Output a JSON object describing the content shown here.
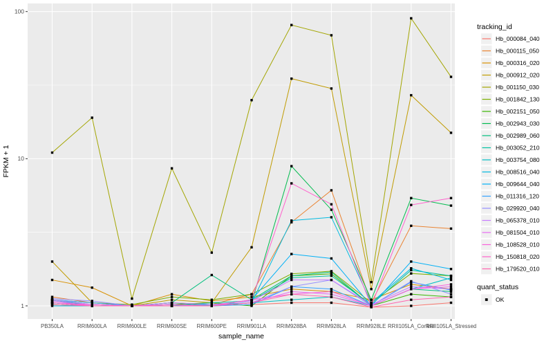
{
  "chart_data": {
    "type": "line",
    "title": "",
    "xlabel": "sample_name",
    "ylabel": "FPKM + 1",
    "y_scale": "log10",
    "ylim": [
      0.81,
      113
    ],
    "y_major_ticks": [
      1,
      10,
      100
    ],
    "y_minor_gridlines": [
      3.162,
      31.62
    ],
    "grid": true,
    "legend_position": "right",
    "color_legend_title": "tracking_id",
    "shape_legend_title": "quant_status",
    "shape_legend_entries": [
      {
        "label": "OK",
        "shape": "square",
        "color": "#000000"
      }
    ],
    "categories": [
      "PB350LA",
      "RRIM600LA",
      "RRIM600LE",
      "RRIM600SE",
      "RRIM600PE",
      "RRIM901LA",
      "RRIM928BA",
      "RRIM928LA",
      "RRIM928LE",
      "RRII105LA_Control",
      "RRII105LA_Stressed"
    ],
    "series": [
      {
        "name": "Hb_000084_040",
        "color": "#F8766D",
        "values": [
          1.05,
          1.0,
          1.0,
          1.0,
          1.0,
          1.02,
          1.05,
          1.05,
          0.98,
          1.0,
          1.05
        ]
      },
      {
        "name": "Hb_000115_050",
        "color": "#EA8331",
        "values": [
          1.15,
          1.05,
          1.0,
          1.05,
          1.02,
          1.2,
          3.7,
          6.1,
          1.05,
          3.5,
          3.35
        ]
      },
      {
        "name": "Hb_000316_020",
        "color": "#D89000",
        "values": [
          1.5,
          1.33,
          1.0,
          1.2,
          1.08,
          1.15,
          1.3,
          1.25,
          1.1,
          1.4,
          1.3
        ]
      },
      {
        "name": "Hb_000912_020",
        "color": "#C09B00",
        "values": [
          2.0,
          1.05,
          1.0,
          1.1,
          1.05,
          2.5,
          35,
          30,
          1.3,
          27,
          15
        ]
      },
      {
        "name": "Hb_001150_030",
        "color": "#A3A500",
        "values": [
          11,
          19,
          1.12,
          8.6,
          2.3,
          25,
          81,
          69,
          1.45,
          90,
          36
        ]
      },
      {
        "name": "Hb_001842_130",
        "color": "#7CAE00",
        "values": [
          1.1,
          1.05,
          1.02,
          1.15,
          1.1,
          1.2,
          1.65,
          1.72,
          1.05,
          1.66,
          1.6
        ]
      },
      {
        "name": "Hb_002151_050",
        "color": "#39B600",
        "values": [
          1.02,
          1.0,
          1.0,
          1.02,
          1.05,
          1.0,
          1.6,
          1.65,
          1.0,
          1.2,
          1.15
        ]
      },
      {
        "name": "Hb_002943_030",
        "color": "#00BB4E",
        "values": [
          1.05,
          1.0,
          1.0,
          1.05,
          1.0,
          1.05,
          8.9,
          4.5,
          1.1,
          5.4,
          4.8
        ]
      },
      {
        "name": "Hb_002989_060",
        "color": "#00BF7D",
        "values": [
          1.1,
          1.02,
          1.0,
          1.05,
          1.62,
          1.1,
          1.6,
          1.7,
          1.0,
          1.3,
          1.25
        ]
      },
      {
        "name": "Hb_003052_210",
        "color": "#00C1A3",
        "values": [
          1.05,
          1.0,
          1.0,
          1.0,
          1.05,
          1.08,
          1.55,
          1.6,
          1.02,
          1.75,
          1.6
        ]
      },
      {
        "name": "Hb_003754_080",
        "color": "#00BFC4",
        "values": [
          1.08,
          1.02,
          1.0,
          1.02,
          1.0,
          1.05,
          1.1,
          1.15,
          1.0,
          1.3,
          1.55
        ]
      },
      {
        "name": "Hb_008516_040",
        "color": "#00BAE0",
        "values": [
          1.0,
          1.0,
          1.0,
          1.0,
          1.02,
          1.05,
          3.8,
          4.0,
          1.05,
          1.8,
          1.5
        ]
      },
      {
        "name": "Hb_009644_040",
        "color": "#00B0F6",
        "values": [
          1.05,
          1.0,
          1.0,
          1.0,
          1.0,
          1.1,
          2.25,
          2.1,
          1.0,
          2.0,
          1.78
        ]
      },
      {
        "name": "Hb_011316_120",
        "color": "#35A2FF",
        "values": [
          1.1,
          1.05,
          1.0,
          1.0,
          1.0,
          1.02,
          1.35,
          1.3,
          1.0,
          1.45,
          1.28
        ]
      },
      {
        "name": "Hb_029920_040",
        "color": "#9590FF",
        "values": [
          1.12,
          1.08,
          1.0,
          1.02,
          1.0,
          1.05,
          1.35,
          1.5,
          1.0,
          1.47,
          1.2
        ]
      },
      {
        "name": "Hb_065378_010",
        "color": "#C77CFF",
        "values": [
          1.1,
          1.02,
          1.0,
          1.05,
          1.02,
          1.08,
          1.5,
          1.5,
          1.02,
          1.35,
          1.3
        ]
      },
      {
        "name": "Hb_081504_010",
        "color": "#E76BF3",
        "values": [
          1.08,
          1.0,
          1.0,
          1.0,
          1.0,
          1.05,
          1.25,
          1.2,
          1.0,
          1.3,
          1.35
        ]
      },
      {
        "name": "Hb_108528_010",
        "color": "#FA62DB",
        "values": [
          1.05,
          1.02,
          1.0,
          1.02,
          1.0,
          1.1,
          1.2,
          1.25,
          1.0,
          1.3,
          1.4
        ]
      },
      {
        "name": "Hb_150818_020",
        "color": "#FF61CC",
        "values": [
          1.05,
          1.0,
          1.0,
          1.0,
          1.0,
          1.1,
          6.8,
          4.9,
          1.0,
          4.85,
          5.4
        ]
      },
      {
        "name": "Hb_179520_010",
        "color": "#FF65AE",
        "values": [
          1.02,
          1.0,
          1.0,
          1.0,
          1.0,
          1.05,
          1.2,
          1.15,
          0.98,
          1.1,
          1.15
        ]
      }
    ],
    "style": {
      "panel_bg": "#EBEBEB",
      "grid_color": "#FFFFFF",
      "legend_key_bg": "#F0F0F0",
      "marker_color": "#000000",
      "tick_label_color": "#4D4D4D",
      "axis_title_color": "#000000",
      "tick_color": "#333333"
    }
  }
}
